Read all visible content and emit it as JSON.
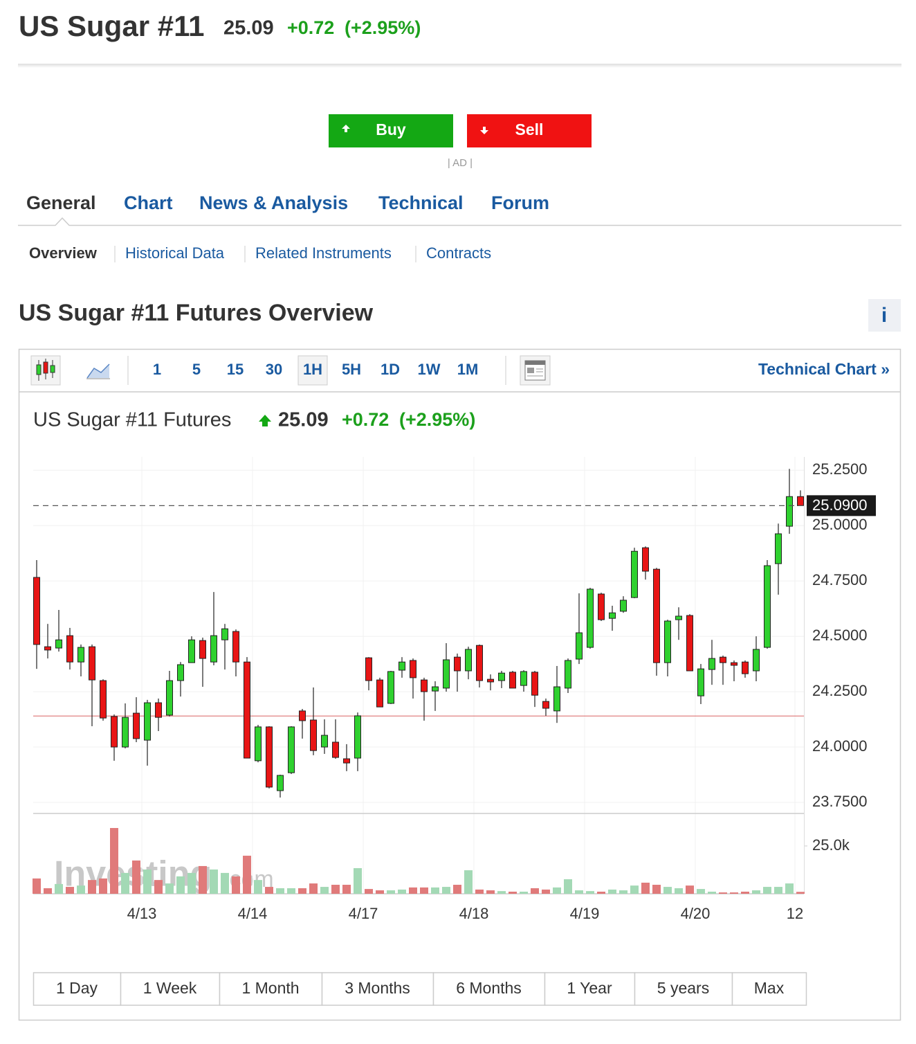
{
  "header": {
    "title": "US Sugar #11",
    "price": "25.09",
    "change": "+0.72",
    "change_pct": "(+2.95%)"
  },
  "trade": {
    "buy": "Buy",
    "sell": "Sell",
    "ad": "| AD |"
  },
  "tabs": [
    "General",
    "Chart",
    "News & Analysis",
    "Technical",
    "Forum"
  ],
  "subtabs": [
    "Overview",
    "Historical Data",
    "Related Instruments",
    "Contracts"
  ],
  "section_title": "US Sugar #11 Futures Overview",
  "info": "i",
  "toolbar": {
    "intervals": [
      "1",
      "5",
      "15",
      "30",
      "1H",
      "5H",
      "1D",
      "1W",
      "1M"
    ],
    "technical_chart": "Technical Chart »"
  },
  "chart_data": {
    "type": "candlestick",
    "title": "US Sugar #11 Futures",
    "price": "25.09",
    "change": "+0.72",
    "change_pct": "(+2.95%)",
    "watermark": [
      "Investing",
      ".com"
    ],
    "categories": [
      null,
      null,
      null,
      null,
      null,
      null,
      null,
      null,
      null,
      null,
      "4/13",
      null,
      null,
      null,
      null,
      null,
      null,
      null,
      null,
      null,
      "4/14",
      null,
      null,
      null,
      null,
      null,
      null,
      null,
      null,
      null,
      "4/17",
      null,
      null,
      null,
      null,
      null,
      null,
      null,
      null,
      null,
      "4/18",
      null,
      null,
      null,
      null,
      null,
      null,
      null,
      null,
      null,
      "4/19",
      null,
      null,
      null,
      null,
      null,
      null,
      null,
      null,
      null,
      "4/20",
      null,
      null,
      null,
      null,
      null,
      null,
      null,
      null,
      "12"
    ],
    "open": [
      24.766,
      24.453,
      24.447,
      24.503,
      24.384,
      24.453,
      24.3,
      24.138,
      24.0,
      24.153,
      24.031,
      24.2,
      24.144,
      24.3,
      24.381,
      24.481,
      24.384,
      24.484,
      24.522,
      24.384,
      23.938,
      24.091,
      23.803,
      23.884,
      24.163,
      24.122,
      24.0,
      24.022,
      23.947,
      23.95,
      24.403,
      24.303,
      24.197,
      24.347,
      24.391,
      24.303,
      24.253,
      24.266,
      24.406,
      24.344,
      24.459,
      24.306,
      24.3,
      24.338,
      24.278,
      24.338,
      24.206,
      24.163,
      24.266,
      24.397,
      24.45,
      24.691,
      24.581,
      24.613,
      24.675,
      24.9,
      24.803,
      24.381,
      24.575,
      24.594,
      24.231,
      24.35,
      24.406,
      24.381,
      24.384,
      24.344,
      24.45,
      24.828,
      24.997,
      25.131
    ],
    "high": [
      24.844,
      24.556,
      24.619,
      24.538,
      24.463,
      24.463,
      24.306,
      24.147,
      24.197,
      24.225,
      24.213,
      24.219,
      24.344,
      24.384,
      24.5,
      24.494,
      24.7,
      24.556,
      24.531,
      24.406,
      24.1,
      24.094,
      23.875,
      24.094,
      24.172,
      24.269,
      24.125,
      24.125,
      24.013,
      24.156,
      24.406,
      24.313,
      24.344,
      24.406,
      24.4,
      24.313,
      24.297,
      24.469,
      24.422,
      24.453,
      24.463,
      24.328,
      24.344,
      24.344,
      24.347,
      24.344,
      24.219,
      24.366,
      24.4,
      24.694,
      24.719,
      24.697,
      24.638,
      24.681,
      24.9,
      24.906,
      24.809,
      24.575,
      24.631,
      24.6,
      24.375,
      24.484,
      24.413,
      24.391,
      24.391,
      24.5,
      24.844,
      25.009,
      25.256,
      25.159
    ],
    "low": [
      24.353,
      24.4,
      24.431,
      24.35,
      24.319,
      24.094,
      24.119,
      23.938,
      23.994,
      24.022,
      23.916,
      24.072,
      24.138,
      24.228,
      24.381,
      24.272,
      24.369,
      24.35,
      24.319,
      23.95,
      23.931,
      23.813,
      23.772,
      23.878,
      24.038,
      23.963,
      23.969,
      23.947,
      23.891,
      23.891,
      24.256,
      24.181,
      24.194,
      24.313,
      24.219,
      24.119,
      24.163,
      24.25,
      24.25,
      24.306,
      24.269,
      24.256,
      24.266,
      24.266,
      24.25,
      24.181,
      24.141,
      24.109,
      24.244,
      24.375,
      24.444,
      24.569,
      24.525,
      24.606,
      24.672,
      24.756,
      24.322,
      24.319,
      24.484,
      24.344,
      24.194,
      24.281,
      24.281,
      24.297,
      24.313,
      24.297,
      24.444,
      24.688,
      24.963,
      25.088
    ],
    "close": [
      24.463,
      24.438,
      24.484,
      24.384,
      24.45,
      24.303,
      24.131,
      24.0,
      24.134,
      24.038,
      24.2,
      24.134,
      24.3,
      24.372,
      24.484,
      24.4,
      24.503,
      24.534,
      24.384,
      23.95,
      24.091,
      23.819,
      23.872,
      24.091,
      24.119,
      23.984,
      24.053,
      23.953,
      23.928,
      24.141,
      24.3,
      24.181,
      24.341,
      24.384,
      24.313,
      24.25,
      24.272,
      24.394,
      24.344,
      24.441,
      24.3,
      24.294,
      24.334,
      24.266,
      24.341,
      24.234,
      24.175,
      24.272,
      24.391,
      24.516,
      24.713,
      24.575,
      24.606,
      24.663,
      24.884,
      24.794,
      24.381,
      24.569,
      24.591,
      24.344,
      24.353,
      24.4,
      24.381,
      24.369,
      24.331,
      24.441,
      24.819,
      24.963,
      25.131,
      25.09
    ],
    "volume": [
      8000,
      2900,
      5100,
      3600,
      4300,
      7200,
      8000,
      34400,
      10900,
      17400,
      12700,
      7200,
      5400,
      9100,
      10900,
      14500,
      12700,
      10900,
      9100,
      19900,
      7200,
      3600,
      2900,
      2900,
      2900,
      5400,
      3600,
      4700,
      4700,
      13400,
      2500,
      1800,
      1800,
      2200,
      3300,
      3300,
      3300,
      3600,
      4700,
      12300,
      2200,
      1800,
      1400,
      1100,
      1100,
      2900,
      2200,
      3300,
      7600,
      1800,
      1400,
      1100,
      2200,
      1800,
      4300,
      5800,
      4700,
      3600,
      2900,
      4300,
      2500,
      1100,
      700,
      700,
      1100,
      1800,
      3600,
      3600,
      5400,
      1000
    ],
    "ylim": [
      23.7,
      25.31
    ],
    "yticks": [
      {
        "value": 25.25,
        "label": "25.2500"
      },
      {
        "value": 25.0,
        "label": "25.0000"
      },
      {
        "value": 24.75,
        "label": "24.7500"
      },
      {
        "value": 24.5,
        "label": "24.5000"
      },
      {
        "value": 24.25,
        "label": "24.2500"
      },
      {
        "value": 24.0,
        "label": "24.0000"
      },
      {
        "value": 23.75,
        "label": "23.7500"
      }
    ],
    "y2lim": [
      0,
      42000
    ],
    "y2ticks": [
      {
        "value": 25000,
        "label": "25.0k"
      }
    ],
    "last_price": {
      "value": 25.09,
      "label": "25.0900"
    },
    "reference_line": 24.14,
    "up_color": "#2fd12f",
    "down_color": "#e81515",
    "up_volume_color": "#a3d9b5",
    "down_volume_color": "#e07a7a",
    "grid": true
  },
  "ranges": [
    "1 Day",
    "1 Week",
    "1 Month",
    "3 Months",
    "6 Months",
    "1 Year",
    "5 years",
    "Max"
  ]
}
